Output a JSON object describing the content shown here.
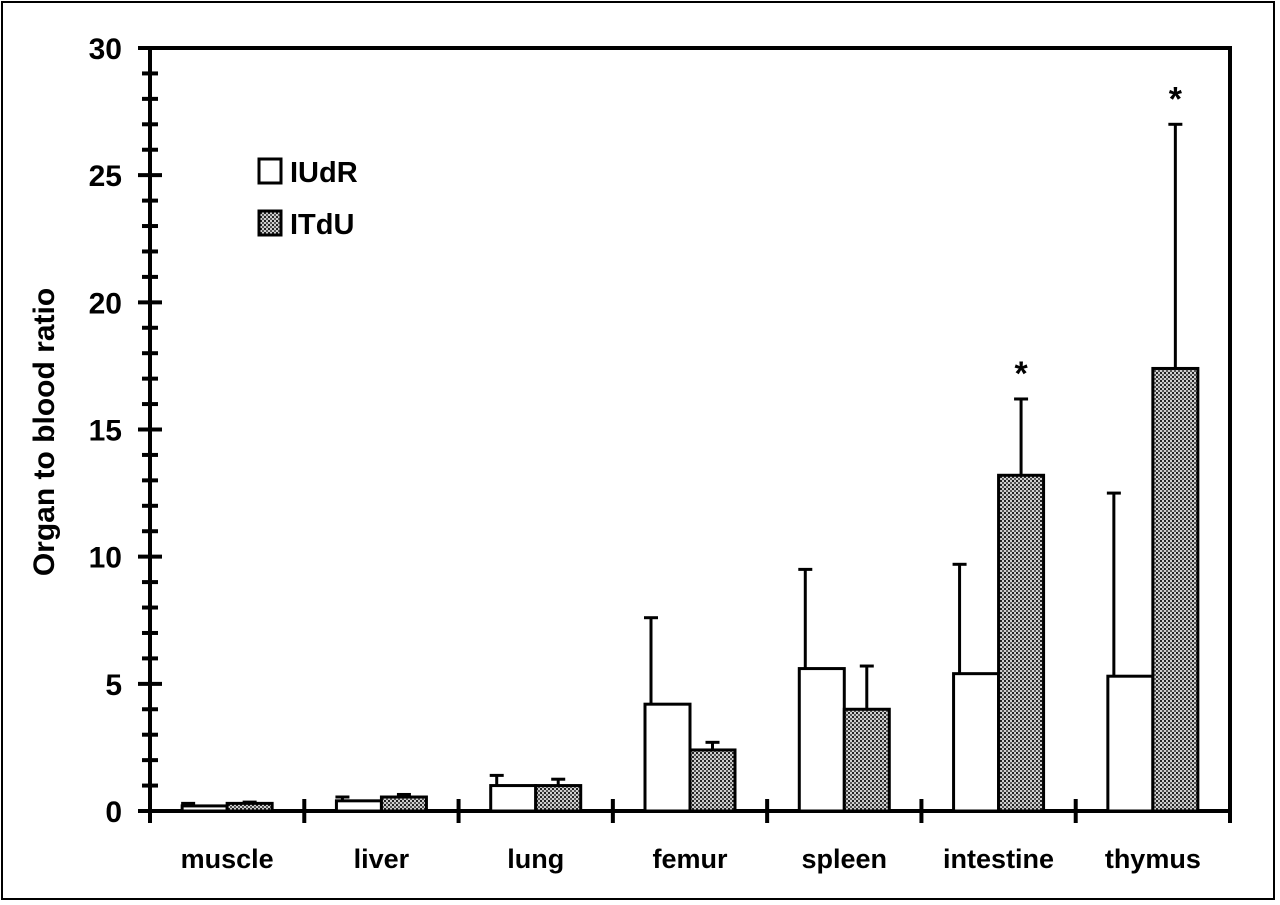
{
  "chart_data": {
    "type": "bar",
    "title": "",
    "xlabel": "",
    "ylabel": "Organ to blood ratio",
    "ylim": [
      0,
      30
    ],
    "yticks": [
      0,
      5,
      10,
      15,
      20,
      25,
      30
    ],
    "categories": [
      "muscle",
      "liver",
      "lung",
      "femur",
      "spleen",
      "intestine",
      "thymus"
    ],
    "series": [
      {
        "name": "IUdR",
        "fill": "white",
        "values": [
          0.2,
          0.4,
          1.0,
          4.2,
          5.6,
          5.4,
          5.3
        ],
        "errors": [
          0.1,
          0.15,
          0.4,
          3.4,
          3.9,
          4.3,
          7.2
        ]
      },
      {
        "name": "ITdU",
        "fill": "stipple",
        "values": [
          0.3,
          0.55,
          1.0,
          2.4,
          4.0,
          13.2,
          17.4
        ],
        "errors": [
          0.05,
          0.1,
          0.25,
          0.3,
          1.7,
          3.0,
          9.6
        ]
      }
    ],
    "significance": [
      {
        "category": "intestine",
        "series": "ITdU",
        "marker": "*"
      },
      {
        "category": "thymus",
        "series": "ITdU",
        "marker": "*"
      }
    ],
    "legend_position": "top-left",
    "grid": false,
    "colors": {
      "stroke": "#000000",
      "stipple_dark": "#2a2a2a",
      "stipple_light": "#d8d8d8"
    }
  }
}
